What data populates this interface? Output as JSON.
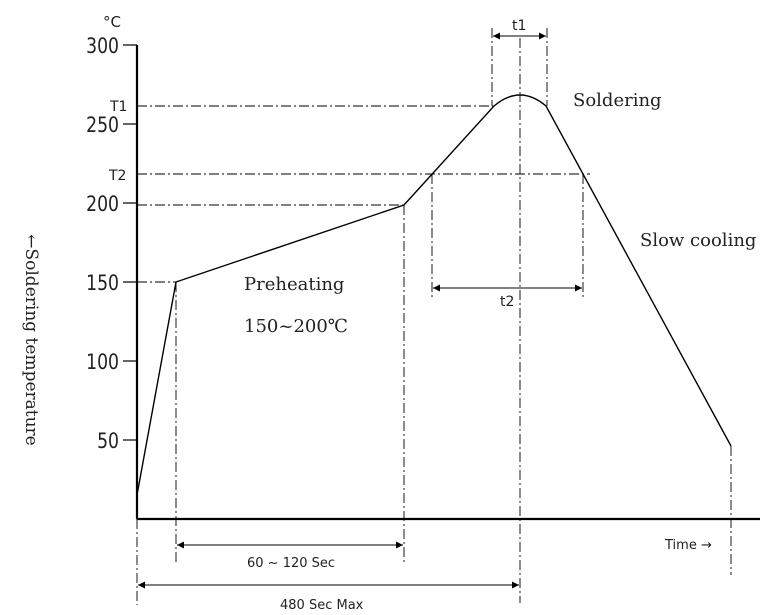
{
  "chart_data": {
    "type": "line",
    "title": "",
    "unit": "°C",
    "ylabel": "←Soldering temperature",
    "xlabel": "Time →",
    "ylim": [
      0,
      300
    ],
    "yticks": [
      300,
      250,
      200,
      150,
      100,
      50
    ],
    "series": [
      {
        "points": [
          [
            0,
            30
          ],
          [
            1,
            150
          ],
          [
            2,
            200
          ],
          [
            3,
            265
          ],
          [
            4,
            218
          ],
          [
            5,
            45
          ]
        ]
      }
    ],
    "markers": [
      {
        "label": "T1",
        "temperature": 260
      },
      {
        "label": "T2",
        "temperature": 220
      }
    ],
    "annotations": {
      "preheating": "Preheating",
      "preheating_range": "150~200℃",
      "soldering": "Soldering",
      "slow_cooling": "Slow cooling",
      "t1": "t1",
      "t2": "t2",
      "preheat_time": "60 ~ 120 Sec",
      "max_time": "480 Sec Max"
    },
    "grid": false
  }
}
